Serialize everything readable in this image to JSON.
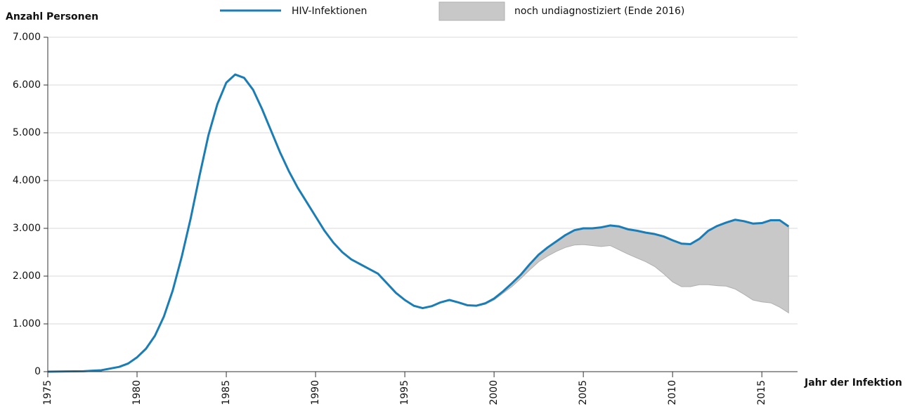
{
  "chart_data": {
    "type": "line",
    "y_label": "Anzahl Personen",
    "x_label": "Jahr der Infektion",
    "xlim": [
      1975,
      2017
    ],
    "xticks": [
      1975,
      1980,
      1985,
      1990,
      1995,
      2000,
      2005,
      2010,
      2015
    ],
    "ylim": [
      0,
      7000
    ],
    "yticks": [
      0,
      {
        "value": 1000,
        "label": "1.000"
      },
      {
        "value": 2000,
        "label": "2.000"
      },
      {
        "value": 3000,
        "label": "3.000"
      },
      {
        "value": 4000,
        "label": "4.000"
      },
      {
        "value": 5000,
        "label": "5.000"
      },
      {
        "value": 6000,
        "label": "6.000"
      },
      {
        "value": 7000,
        "label": "7.000"
      }
    ],
    "grid": true,
    "legend": "top",
    "series": [
      {
        "name": "HIV-Infektionen",
        "type": "line",
        "color": "#1a7db6",
        "x": [
          1975,
          1976,
          1977,
          1978,
          1979,
          1979.5,
          1980,
          1980.5,
          1981,
          1981.5,
          1982,
          1982.5,
          1983,
          1983.5,
          1984,
          1984.5,
          1985,
          1985.5,
          1986,
          1986.5,
          1987,
          1987.5,
          1988,
          1988.5,
          1989,
          1989.5,
          1990,
          1990.5,
          1991,
          1991.5,
          1992,
          1992.5,
          1993,
          1993.5,
          1994,
          1994.5,
          1995,
          1995.5,
          1996,
          1996.5,
          1997,
          1997.5,
          1998,
          1998.5,
          1999,
          1999.5,
          2000,
          2000.5,
          2001,
          2001.5,
          2002,
          2002.5,
          2003,
          2003.5,
          2004,
          2004.5,
          2005,
          2005.5,
          2006,
          2006.5,
          2007,
          2007.5,
          2008,
          2008.5,
          2009,
          2009.5,
          2010,
          2010.5,
          2011,
          2011.5,
          2012,
          2012.5,
          2013,
          2013.5,
          2014,
          2014.5,
          2015,
          2015.5,
          2016,
          2016.5
        ],
        "values": [
          0,
          5,
          10,
          30,
          100,
          170,
          300,
          480,
          750,
          1150,
          1700,
          2400,
          3200,
          4100,
          4950,
          5600,
          6050,
          6220,
          6150,
          5900,
          5500,
          5050,
          4600,
          4200,
          3850,
          3550,
          3250,
          2950,
          2700,
          2500,
          2350,
          2250,
          2150,
          2050,
          1850,
          1650,
          1500,
          1380,
          1330,
          1370,
          1450,
          1500,
          1450,
          1390,
          1380,
          1430,
          1530,
          1680,
          1850,
          2030,
          2250,
          2450,
          2600,
          2730,
          2860,
          2960,
          3000,
          3000,
          3020,
          3060,
          3040,
          2980,
          2950,
          2910,
          2880,
          2830,
          2750,
          2680,
          2670,
          2780,
          2950,
          3050,
          3120,
          3180,
          3150,
          3100,
          3110,
          3170,
          3170,
          3040
        ]
      },
      {
        "name": "noch undiagnostiziert (Ende 2016)",
        "type": "band",
        "color": "#c8c8c8",
        "x": [
          1999,
          1999.5,
          2000,
          2000.5,
          2001,
          2001.5,
          2002,
          2002.5,
          2003,
          2003.5,
          2004,
          2004.5,
          2005,
          2005.5,
          2006,
          2006.5,
          2007,
          2007.5,
          2008,
          2008.5,
          2009,
          2009.5,
          2010,
          2010.5,
          2011,
          2011.5,
          2012,
          2012.5,
          2013,
          2013.5,
          2014,
          2014.5,
          2015,
          2015.5,
          2016,
          2016.5
        ],
        "values": [
          10,
          20,
          30,
          40,
          70,
          80,
          120,
          150,
          180,
          210,
          260,
          310,
          340,
          360,
          400,
          420,
          490,
          520,
          570,
          610,
          680,
          780,
          870,
          900,
          890,
          960,
          1130,
          1250,
          1330,
          1450,
          1530,
          1600,
          1650,
          1730,
          1820,
          1810
        ]
      }
    ]
  }
}
